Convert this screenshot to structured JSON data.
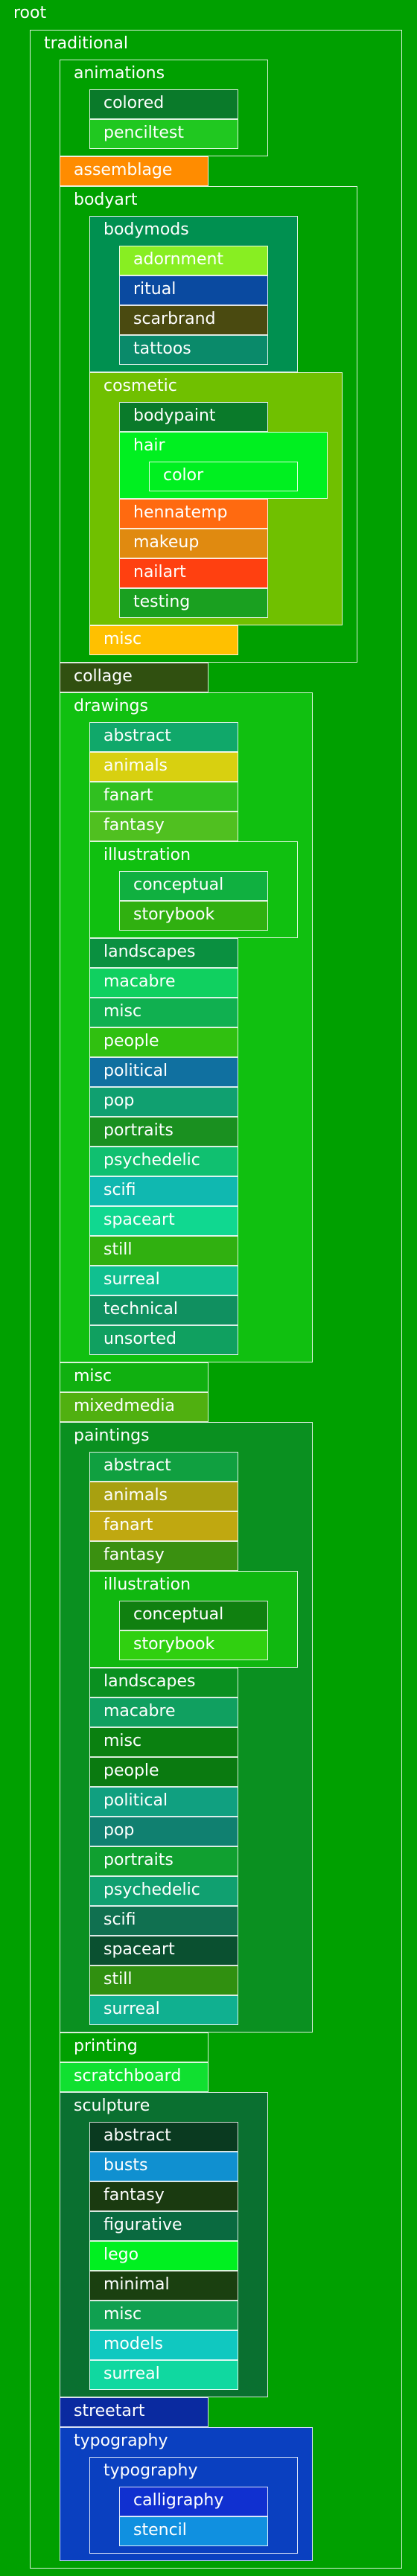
{
  "tree": {
    "name": "root",
    "color": "#00a000",
    "children": [
      {
        "name": "traditional",
        "color": "#00a000",
        "children": [
          {
            "name": "animations",
            "color": "#00a000",
            "children": [
              {
                "name": "colored",
                "color": "#0a7a2a"
              },
              {
                "name": "penciltest",
                "color": "#20c820"
              }
            ]
          },
          {
            "name": "assemblage",
            "color": "#ff8c00"
          },
          {
            "name": "bodyart",
            "color": "#00a000",
            "children": [
              {
                "name": "bodymods",
                "color": "#009050",
                "children": [
                  {
                    "name": "adornment",
                    "color": "#88ee22"
                  },
                  {
                    "name": "ritual",
                    "color": "#0a4aa0"
                  },
                  {
                    "name": "scarbrand",
                    "color": "#4a4a10"
                  },
                  {
                    "name": "tattoos",
                    "color": "#0a8a6a"
                  }
                ]
              },
              {
                "name": "cosmetic",
                "color": "#70c000",
                "children": [
                  {
                    "name": "bodypaint",
                    "color": "#0a7a2a"
                  },
                  {
                    "name": "hair",
                    "color": "#00f020",
                    "children": [
                      {
                        "name": "color",
                        "color": "#00f020"
                      }
                    ]
                  },
                  {
                    "name": "hennatemp",
                    "color": "#ff6a10"
                  },
                  {
                    "name": "makeup",
                    "color": "#e08a10"
                  },
                  {
                    "name": "nailart",
                    "color": "#ff4010"
                  },
                  {
                    "name": "testing",
                    "color": "#1aa020"
                  }
                ]
              },
              {
                "name": "misc",
                "color": "#ffc000"
              }
            ]
          },
          {
            "name": "collage",
            "color": "#305010"
          },
          {
            "name": "drawings",
            "color": "#10c010",
            "children": [
              {
                "name": "abstract",
                "color": "#10a86a"
              },
              {
                "name": "animals",
                "color": "#d8d010"
              },
              {
                "name": "fanart",
                "color": "#30c020"
              },
              {
                "name": "fantasy",
                "color": "#50c020"
              },
              {
                "name": "illustration",
                "color": "#10c010",
                "children": [
                  {
                    "name": "conceptual",
                    "color": "#10b040"
                  },
                  {
                    "name": "storybook",
                    "color": "#30b010"
                  }
                ]
              },
              {
                "name": "landscapes",
                "color": "#0a9040"
              },
              {
                "name": "macabre",
                "color": "#10d060"
              },
              {
                "name": "misc",
                "color": "#10b050"
              },
              {
                "name": "people",
                "color": "#30c010"
              },
              {
                "name": "political",
                "color": "#1070a0"
              },
              {
                "name": "pop",
                "color": "#10a070"
              },
              {
                "name": "portraits",
                "color": "#1a9020"
              },
              {
                "name": "psychedelic",
                "color": "#10c070"
              },
              {
                "name": "scifi",
                "color": "#10b8b0"
              },
              {
                "name": "spaceart",
                "color": "#10d890"
              },
              {
                "name": "still",
                "color": "#30b010"
              },
              {
                "name": "surreal",
                "color": "#10c090"
              },
              {
                "name": "technical",
                "color": "#109060"
              },
              {
                "name": "unsorted",
                "color": "#10a060"
              }
            ]
          },
          {
            "name": "misc",
            "color": "#10b010"
          },
          {
            "name": "mixedmedia",
            "color": "#50b010"
          },
          {
            "name": "paintings",
            "color": "#0a9020",
            "children": [
              {
                "name": "abstract",
                "color": "#10a040"
              },
              {
                "name": "animals",
                "color": "#a8a010"
              },
              {
                "name": "fanart",
                "color": "#c0a810"
              },
              {
                "name": "fantasy",
                "color": "#3a9010"
              },
              {
                "name": "illustration",
                "color": "#10b810",
                "children": [
                  {
                    "name": "conceptual",
                    "color": "#108010"
                  },
                  {
                    "name": "storybook",
                    "color": "#30d010"
                  }
                ]
              },
              {
                "name": "landscapes",
                "color": "#0a9020"
              },
              {
                "name": "macabre",
                "color": "#10a060"
              },
              {
                "name": "misc",
                "color": "#0a8010"
              },
              {
                "name": "people",
                "color": "#0a7a10"
              },
              {
                "name": "political",
                "color": "#10a080"
              },
              {
                "name": "pop",
                "color": "#108070"
              },
              {
                "name": "portraits",
                "color": "#10a030"
              },
              {
                "name": "psychedelic",
                "color": "#10a070"
              },
              {
                "name": "scifi",
                "color": "#107050"
              },
              {
                "name": "spaceart",
                "color": "#0a5030"
              },
              {
                "name": "still",
                "color": "#309010"
              },
              {
                "name": "surreal",
                "color": "#10b090"
              }
            ]
          },
          {
            "name": "printing",
            "color": "#00a000"
          },
          {
            "name": "scratchboard",
            "color": "#10e030"
          },
          {
            "name": "sculpture",
            "color": "#0a7030",
            "children": [
              {
                "name": "abstract",
                "color": "#0a3a20"
              },
              {
                "name": "busts",
                "color": "#1090d0"
              },
              {
                "name": "fantasy",
                "color": "#1a3a10"
              },
              {
                "name": "figurative",
                "color": "#0a6a40"
              },
              {
                "name": "lego",
                "color": "#00f020"
              },
              {
                "name": "minimal",
                "color": "#1a4010"
              },
              {
                "name": "misc",
                "color": "#10a050"
              },
              {
                "name": "models",
                "color": "#10c8c0"
              },
              {
                "name": "surreal",
                "color": "#10d8a0"
              }
            ]
          },
          {
            "name": "streetart",
            "color": "#0a2aa0"
          },
          {
            "name": "typography",
            "color": "#0a40c0",
            "children": [
              {
                "name": "typography",
                "color": "#0a40c0",
                "children": [
                  {
                    "name": "calligraphy",
                    "color": "#1030d0"
                  },
                  {
                    "name": "stencil",
                    "color": "#1090e0"
                  }
                ]
              }
            ]
          }
        ]
      }
    ]
  }
}
